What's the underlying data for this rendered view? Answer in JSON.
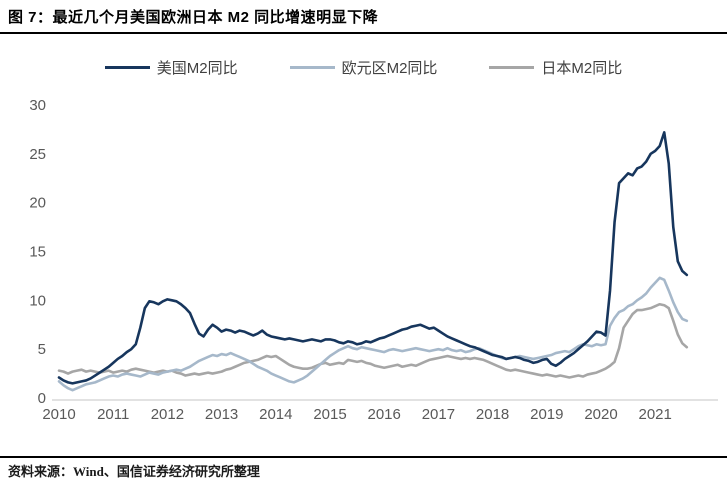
{
  "figure": {
    "title": "图 7：最近几个月美国欧洲日本 M2 同比增速明显下降"
  },
  "legend": {
    "items": [
      {
        "label": "美国M2同比",
        "color": "#17365d"
      },
      {
        "label": "欧元区M2同比",
        "color": "#a6b8ca"
      },
      {
        "label": "日本M2同比",
        "color": "#a6a6a6"
      }
    ]
  },
  "chart_data": {
    "type": "line",
    "title": "最近几个月美国欧洲日本M2同比增速明显下降",
    "xlabel": "",
    "ylabel": "",
    "ylim": [
      0,
      30
    ],
    "y_ticks": [
      0,
      5,
      10,
      15,
      20,
      25,
      30
    ],
    "x_tick_labels": [
      "2010",
      "2011",
      "2012",
      "2013",
      "2014",
      "2015",
      "2016",
      "2017",
      "2018",
      "2019",
      "2020",
      "2021"
    ],
    "x_start": "2010-01",
    "x_end": "2021-08",
    "x_frequency": "monthly",
    "grid": false,
    "legend_position": "top",
    "axis_color": "#d9d9d9",
    "tick_label_color": "#595959",
    "series": [
      {
        "name": "美国M2同比",
        "key": "us-m2",
        "color": "#17365d",
        "values": [
          2.1,
          1.8,
          1.6,
          1.5,
          1.6,
          1.7,
          1.8,
          2.0,
          2.3,
          2.6,
          2.9,
          3.2,
          3.6,
          4.0,
          4.3,
          4.7,
          5.0,
          5.5,
          7.2,
          9.2,
          9.9,
          9.8,
          9.6,
          9.9,
          10.1,
          10.0,
          9.9,
          9.6,
          9.2,
          8.7,
          7.6,
          6.6,
          6.3,
          7.0,
          7.5,
          7.2,
          6.8,
          7.0,
          6.9,
          6.7,
          6.9,
          6.8,
          6.6,
          6.4,
          6.6,
          6.9,
          6.5,
          6.3,
          6.2,
          6.1,
          6.0,
          6.1,
          6.0,
          5.9,
          5.8,
          5.9,
          6.0,
          5.9,
          5.8,
          6.0,
          6.0,
          5.9,
          5.7,
          5.6,
          5.8,
          5.7,
          5.5,
          5.6,
          5.8,
          5.7,
          5.9,
          6.1,
          6.2,
          6.4,
          6.6,
          6.8,
          7.0,
          7.1,
          7.3,
          7.4,
          7.5,
          7.3,
          7.1,
          7.2,
          6.9,
          6.6,
          6.3,
          6.1,
          5.9,
          5.7,
          5.5,
          5.3,
          5.2,
          5.0,
          4.8,
          4.6,
          4.4,
          4.3,
          4.2,
          4.0,
          4.1,
          4.2,
          4.1,
          3.9,
          3.8,
          3.6,
          3.7,
          3.9,
          4.0,
          3.5,
          3.3,
          3.6,
          4.0,
          4.3,
          4.6,
          5.0,
          5.4,
          5.8,
          6.3,
          6.8,
          6.7,
          6.4,
          11.0,
          18.0,
          22.0,
          22.5,
          23.0,
          22.8,
          23.5,
          23.7,
          24.2,
          25.0,
          25.3,
          25.8,
          27.2,
          24.0,
          17.5,
          14.0,
          13.0,
          12.6
        ]
      },
      {
        "name": "欧元区M2同比",
        "key": "eurozone-m2",
        "color": "#a6b8ca",
        "values": [
          1.7,
          1.3,
          1.0,
          0.8,
          1.0,
          1.2,
          1.4,
          1.5,
          1.6,
          1.8,
          2.0,
          2.2,
          2.3,
          2.2,
          2.4,
          2.5,
          2.4,
          2.3,
          2.2,
          2.4,
          2.6,
          2.5,
          2.4,
          2.6,
          2.7,
          2.8,
          2.9,
          2.8,
          3.0,
          3.2,
          3.5,
          3.8,
          4.0,
          4.2,
          4.4,
          4.3,
          4.5,
          4.4,
          4.6,
          4.4,
          4.2,
          4.0,
          3.8,
          3.5,
          3.2,
          3.0,
          2.8,
          2.5,
          2.3,
          2.1,
          1.9,
          1.7,
          1.6,
          1.8,
          2.0,
          2.3,
          2.7,
          3.1,
          3.5,
          3.9,
          4.3,
          4.6,
          4.9,
          5.1,
          5.3,
          5.1,
          5.0,
          5.2,
          5.1,
          5.0,
          4.9,
          4.8,
          4.7,
          4.9,
          5.0,
          4.9,
          4.8,
          4.9,
          5.0,
          5.1,
          5.0,
          4.9,
          4.8,
          4.9,
          5.0,
          4.9,
          5.1,
          4.9,
          4.8,
          4.9,
          4.7,
          4.8,
          5.0,
          5.1,
          4.9,
          4.7,
          4.5,
          4.3,
          4.1,
          4.0,
          4.1,
          4.2,
          4.3,
          4.2,
          4.1,
          4.0,
          4.1,
          4.2,
          4.3,
          4.4,
          4.6,
          4.7,
          4.8,
          4.7,
          5.0,
          5.3,
          5.5,
          5.4,
          5.3,
          5.5,
          5.4,
          5.5,
          7.4,
          8.2,
          8.8,
          9.0,
          9.4,
          9.6,
          10.0,
          10.3,
          10.7,
          11.3,
          11.8,
          12.3,
          12.1,
          11.0,
          9.8,
          8.8,
          8.1,
          7.9
        ]
      },
      {
        "name": "日本M2同比",
        "key": "japan-m2",
        "color": "#a6a6a6",
        "values": [
          2.8,
          2.7,
          2.5,
          2.7,
          2.8,
          2.9,
          2.7,
          2.8,
          2.7,
          2.6,
          2.7,
          2.8,
          2.6,
          2.7,
          2.8,
          2.7,
          2.9,
          3.0,
          2.9,
          2.8,
          2.7,
          2.6,
          2.7,
          2.8,
          2.7,
          2.8,
          2.6,
          2.5,
          2.3,
          2.4,
          2.5,
          2.4,
          2.5,
          2.6,
          2.5,
          2.6,
          2.7,
          2.9,
          3.0,
          3.2,
          3.4,
          3.6,
          3.7,
          3.8,
          3.9,
          4.1,
          4.3,
          4.2,
          4.3,
          4.0,
          3.7,
          3.4,
          3.2,
          3.1,
          3.0,
          3.0,
          3.1,
          3.3,
          3.5,
          3.6,
          3.4,
          3.5,
          3.6,
          3.5,
          3.9,
          3.8,
          3.7,
          3.8,
          3.6,
          3.5,
          3.3,
          3.2,
          3.1,
          3.2,
          3.3,
          3.4,
          3.2,
          3.3,
          3.4,
          3.3,
          3.5,
          3.7,
          3.9,
          4.0,
          4.1,
          4.2,
          4.3,
          4.2,
          4.1,
          4.0,
          4.1,
          4.0,
          4.1,
          4.0,
          3.9,
          3.7,
          3.5,
          3.3,
          3.1,
          2.9,
          2.8,
          2.9,
          2.8,
          2.7,
          2.6,
          2.5,
          2.4,
          2.3,
          2.4,
          2.3,
          2.2,
          2.3,
          2.2,
          2.1,
          2.2,
          2.3,
          2.2,
          2.4,
          2.5,
          2.6,
          2.8,
          3.0,
          3.3,
          3.7,
          5.1,
          7.2,
          7.9,
          8.6,
          9.0,
          9.0,
          9.1,
          9.2,
          9.4,
          9.6,
          9.5,
          9.2,
          7.9,
          6.5,
          5.6,
          5.2
        ]
      }
    ]
  },
  "footer": {
    "source": "资料来源：Wind、国信证券经济研究所整理"
  }
}
